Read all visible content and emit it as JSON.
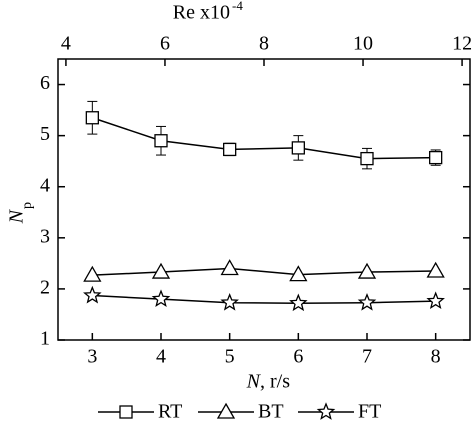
{
  "chart_data": {
    "type": "line",
    "x_label_symbol": "N",
    "x_label_unit": ", r/s",
    "y_label_symbol": "N",
    "y_label_subscript": "p",
    "top_axis_label": "Re x10",
    "top_axis_exponent": "-4",
    "x": [
      3,
      4,
      5,
      6,
      7,
      8
    ],
    "xlim": [
      2.5,
      8.5
    ],
    "xticks": [
      3,
      4,
      5,
      6,
      7,
      8
    ],
    "ylim": [
      1,
      6.5
    ],
    "yticks": [
      1,
      2,
      3,
      4,
      5,
      6
    ],
    "x2lim": [
      3.84,
      12.16
    ],
    "x2ticks": [
      4,
      6,
      8,
      10,
      12
    ],
    "series": [
      {
        "name": "RT",
        "marker": "square",
        "color": "#000000",
        "values": [
          5.35,
          4.9,
          4.73,
          4.76,
          4.55,
          4.57
        ],
        "errors": [
          0.32,
          0.28,
          0.12,
          0.24,
          0.2,
          0.15
        ]
      },
      {
        "name": "BT",
        "marker": "triangle",
        "color": "#000000",
        "values": [
          2.27,
          2.33,
          2.4,
          2.28,
          2.33,
          2.35
        ]
      },
      {
        "name": "FT",
        "marker": "star",
        "color": "#000000",
        "values": [
          1.87,
          1.8,
          1.73,
          1.72,
          1.73,
          1.76
        ]
      }
    ]
  }
}
